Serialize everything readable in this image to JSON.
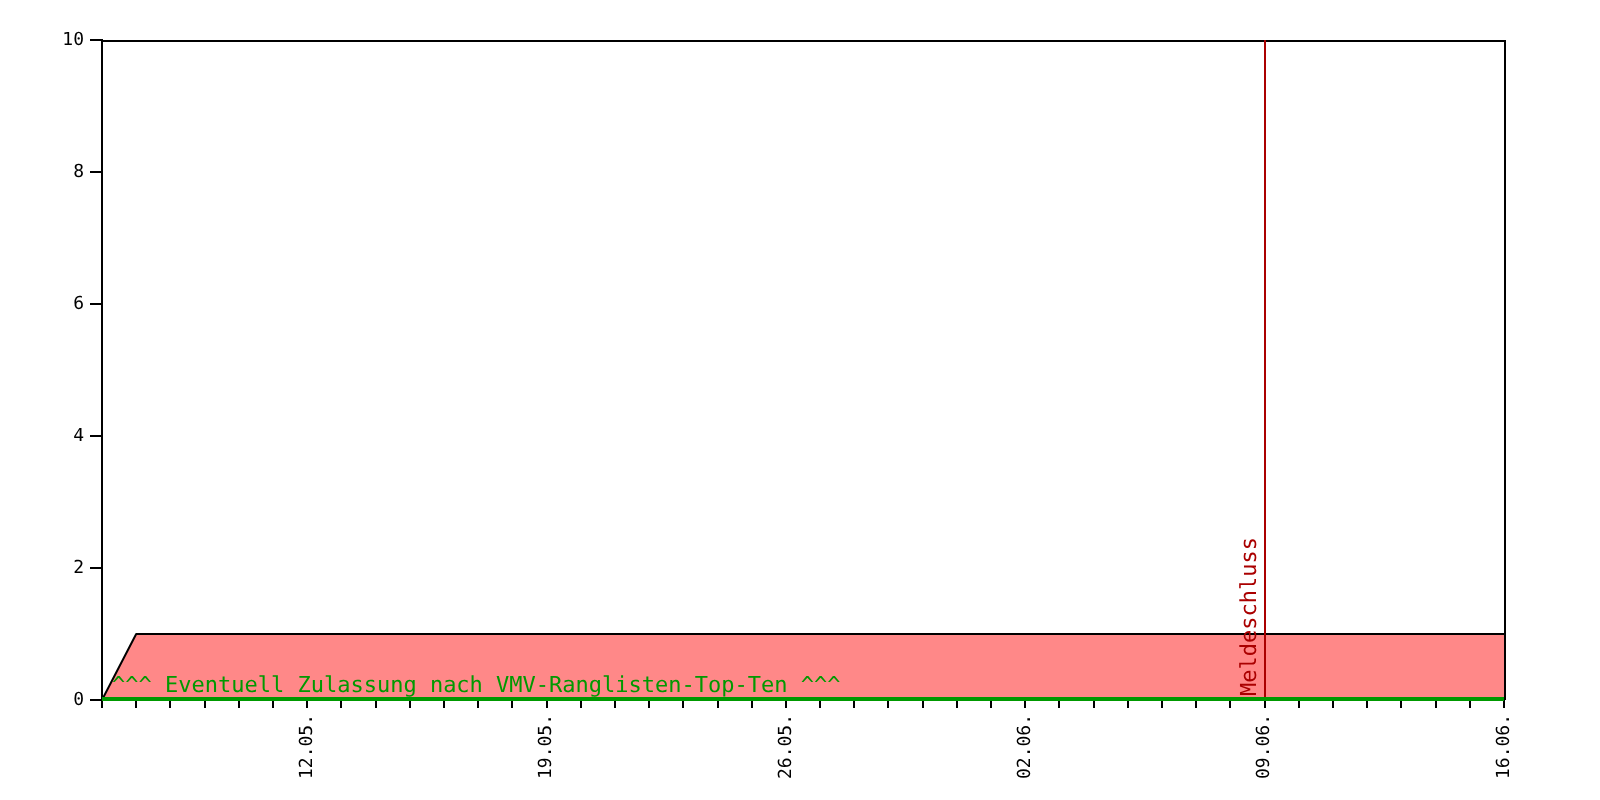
{
  "chart_data": {
    "type": "area",
    "x": [
      "--05-06",
      "--05-07",
      "--06-16"
    ],
    "series": [
      {
        "color": "#ff8888",
        "values": [
          0,
          1,
          1
        ]
      }
    ],
    "xlim": [
      "--05-06",
      "--06-16"
    ],
    "xticks": [
      {
        "value": "--05-06",
        "label": null
      },
      {
        "value": "--05-07",
        "label": null
      },
      {
        "value": "--05-08",
        "label": null
      },
      {
        "value": "--05-09",
        "label": null
      },
      {
        "value": "--05-10",
        "label": null
      },
      {
        "value": "--05-11",
        "label": null
      },
      {
        "value": "--05-12",
        "label": "12.05."
      },
      {
        "value": "--05-13",
        "label": null
      },
      {
        "value": "--05-14",
        "label": null
      },
      {
        "value": "--05-15",
        "label": null
      },
      {
        "value": "--05-16",
        "label": null
      },
      {
        "value": "--05-17",
        "label": null
      },
      {
        "value": "--05-18",
        "label": null
      },
      {
        "value": "--05-19",
        "label": "19.05."
      },
      {
        "value": "--05-20",
        "label": null
      },
      {
        "value": "--05-21",
        "label": null
      },
      {
        "value": "--05-22",
        "label": null
      },
      {
        "value": "--05-23",
        "label": null
      },
      {
        "value": "--05-24",
        "label": null
      },
      {
        "value": "--05-25",
        "label": null
      },
      {
        "value": "--05-26",
        "label": "26.05."
      },
      {
        "value": "--05-27",
        "label": null
      },
      {
        "value": "--05-28",
        "label": null
      },
      {
        "value": "--05-29",
        "label": null
      },
      {
        "value": "--05-30",
        "label": null
      },
      {
        "value": "--05-31",
        "label": null
      },
      {
        "value": "--06-01",
        "label": null
      },
      {
        "value": "--06-02",
        "label": "02.06."
      },
      {
        "value": "--06-03",
        "label": null
      },
      {
        "value": "--06-04",
        "label": null
      },
      {
        "value": "--06-05",
        "label": null
      },
      {
        "value": "--06-06",
        "label": null
      },
      {
        "value": "--06-07",
        "label": null
      },
      {
        "value": "--06-08",
        "label": null
      },
      {
        "value": "--06-09",
        "label": "09.06."
      },
      {
        "value": "--06-10",
        "label": null
      },
      {
        "value": "--06-11",
        "label": null
      },
      {
        "value": "--06-12",
        "label": null
      },
      {
        "value": "--06-13",
        "label": null
      },
      {
        "value": "--06-14",
        "label": null
      },
      {
        "value": "--06-15",
        "label": null
      },
      {
        "value": "--06-16",
        "label": "16.06."
      }
    ],
    "ylim": [
      0,
      10
    ],
    "yticks": [
      0,
      2,
      4,
      6,
      8,
      10
    ],
    "grid": false,
    "legend": false,
    "ref_lines": [
      {
        "axis": "x",
        "value": "--06-09",
        "label": "Meldeschluss",
        "color": "#aa0000"
      },
      {
        "axis": "y",
        "value": 0,
        "label": "^^^ Eventuell Zulassung nach VMV-Ranglisten-Top-Ten ^^^",
        "color": "#009900"
      }
    ]
  }
}
